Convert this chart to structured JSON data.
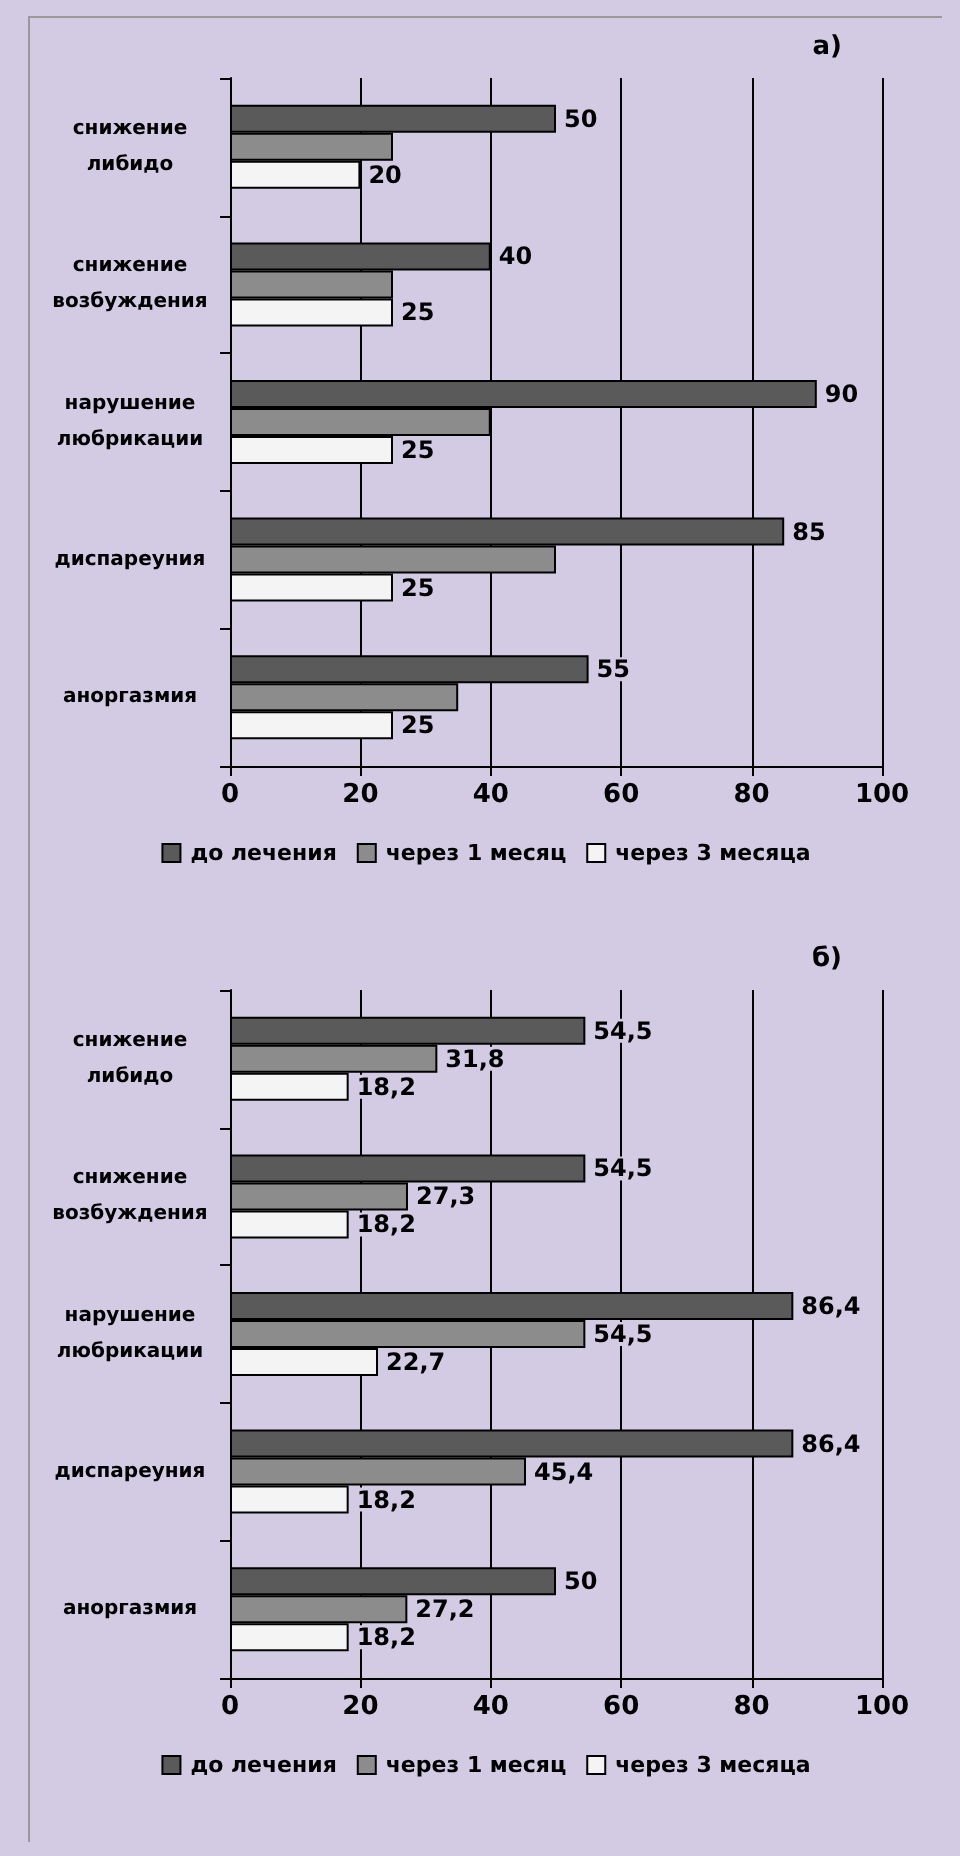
{
  "chart_data": [
    {
      "type": "bar",
      "orientation": "horizontal",
      "annotations": [
        "а)"
      ],
      "categories": [
        "снижение\nлибидо",
        "снижение\nвозбуждения",
        "нарушение\nлюбрикации",
        "диспареуния",
        "аноргазмия"
      ],
      "series": [
        {
          "name": "до лечения",
          "color": "#5a5a5a",
          "values": [
            50,
            40,
            90,
            85,
            55
          ],
          "value_labels": [
            "50",
            "40",
            "90",
            "85",
            "55"
          ]
        },
        {
          "name": "через 1 месяц",
          "color": "#8c8c8c",
          "values": [
            25,
            25,
            40,
            50,
            35
          ],
          "value_labels": [
            null,
            null,
            null,
            null,
            null
          ]
        },
        {
          "name": "через 3 месяца",
          "color": "#f4f4f4",
          "values": [
            20,
            25,
            25,
            25,
            25
          ],
          "value_labels": [
            "20",
            "25",
            "25",
            "25",
            "25"
          ]
        }
      ],
      "xlim": [
        0,
        100
      ],
      "xticks": [
        0,
        20,
        40,
        60,
        80,
        100
      ],
      "grid": "x",
      "legend": "bottom"
    },
    {
      "type": "bar",
      "orientation": "horizontal",
      "annotations": [
        "б)"
      ],
      "categories": [
        "снижение\nлибидо",
        "снижение\nвозбуждения",
        "нарушение\nлюбрикации",
        "диспареуния",
        "аноргазмия"
      ],
      "series": [
        {
          "name": "до лечения",
          "color": "#5a5a5a",
          "values": [
            54.5,
            54.5,
            86.4,
            86.4,
            50
          ],
          "value_labels": [
            "54,5",
            "54,5",
            "86,4",
            "86,4",
            "50"
          ]
        },
        {
          "name": "через 1 месяц",
          "color": "#8c8c8c",
          "values": [
            31.8,
            27.3,
            54.5,
            45.4,
            27.2
          ],
          "value_labels": [
            "31,8",
            "27,3",
            "54,5",
            "45,4",
            "27,2"
          ]
        },
        {
          "name": "через 3 месяца",
          "color": "#f4f4f4",
          "values": [
            18.2,
            18.2,
            22.7,
            18.2,
            18.2
          ],
          "value_labels": [
            "18,2",
            "18,2",
            "22,7",
            "18,2",
            "18,2"
          ]
        }
      ],
      "xlim": [
        0,
        100
      ],
      "xticks": [
        0,
        20,
        40,
        60,
        80,
        100
      ],
      "grid": "x",
      "legend": "bottom"
    }
  ]
}
